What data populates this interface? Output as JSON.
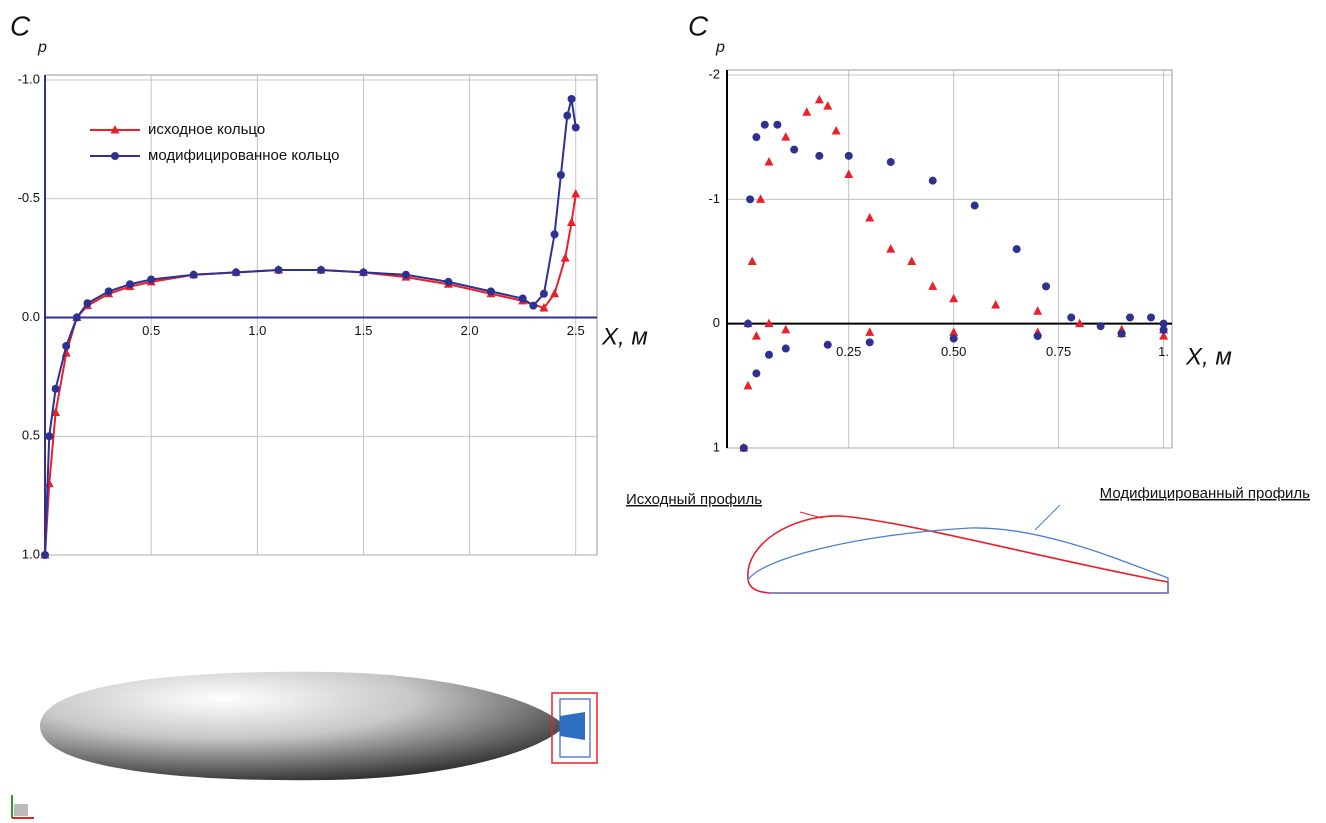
{
  "chart_data": [
    {
      "type": "line",
      "y_label": "C",
      "y_label_sub": "p",
      "x_label": "X, м",
      "xlim": [
        0,
        2.6
      ],
      "ylim": [
        1,
        -1
      ],
      "xticks": [
        0.5,
        {
          "value": 1,
          "label": "1.0"
        },
        1.5,
        {
          "value": 2,
          "label": "2.0"
        },
        2.5
      ],
      "yticks": [
        {
          "value": -1,
          "label": "-1.0"
        },
        -0.5,
        {
          "value": 0,
          "label": "0.0"
        },
        0.5,
        {
          "value": 1,
          "label": "1.0"
        }
      ],
      "grid": true,
      "legend": "upper left",
      "series": [
        {
          "name": "исходное кольцо",
          "color": "#e8202a",
          "marker": "triangle",
          "x": [
            0,
            0.02,
            0.05,
            0.1,
            0.15,
            0.2,
            0.3,
            0.4,
            0.5,
            0.7,
            0.9,
            1.1,
            1.3,
            1.5,
            1.7,
            1.9,
            2.1,
            2.25,
            2.35,
            2.4,
            2.45,
            2.48,
            2.5
          ],
          "values": [
            1,
            0.7,
            0.4,
            0.15,
            0,
            -0.05,
            -0.1,
            -0.13,
            -0.15,
            -0.18,
            -0.19,
            -0.2,
            -0.2,
            -0.19,
            -0.17,
            -0.14,
            -0.1,
            -0.07,
            -0.04,
            -0.1,
            -0.25,
            -0.4,
            -0.52
          ]
        },
        {
          "name": "модифицированное кольцо",
          "color": "#2e3192",
          "marker": "circle",
          "x": [
            0,
            0.02,
            0.05,
            0.1,
            0.15,
            0.2,
            0.3,
            0.4,
            0.5,
            0.7,
            0.9,
            1.1,
            1.3,
            1.5,
            1.7,
            1.9,
            2.1,
            2.25,
            2.3,
            2.35,
            2.4,
            2.43,
            2.46,
            2.48,
            2.5
          ],
          "values": [
            1,
            0.5,
            0.3,
            0.12,
            0,
            -0.06,
            -0.11,
            -0.14,
            -0.16,
            -0.18,
            -0.19,
            -0.2,
            -0.2,
            -0.19,
            -0.18,
            -0.15,
            -0.11,
            -0.08,
            -0.05,
            -0.1,
            -0.35,
            -0.6,
            -0.85,
            -0.92,
            -0.8
          ]
        }
      ]
    },
    {
      "type": "scatter",
      "y_label": "C",
      "y_label_sub": "p",
      "x_label": "X, м",
      "xlim": [
        -0.04,
        1.02
      ],
      "ylim": [
        1,
        -2
      ],
      "xticks": [
        0.25,
        {
          "value": 0.5,
          "label": "0.50"
        },
        0.75,
        {
          "value": 1,
          "label": "1."
        }
      ],
      "yticks": [
        -2,
        -1,
        0,
        1
      ],
      "grid": true,
      "series": [
        {
          "color": "#e8202a",
          "marker": "triangle",
          "x": [
            0,
            0.01,
            0.02,
            0.04,
            0.06,
            0.1,
            0.15,
            0.18,
            0.2,
            0.22,
            0.25,
            0.3,
            0.35,
            0.4,
            0.45,
            0.5,
            0.6,
            0.7,
            0.8,
            0.9,
            1.0
          ],
          "values": [
            1,
            0,
            -0.5,
            -1.0,
            -1.3,
            -1.5,
            -1.7,
            -1.8,
            -1.75,
            -1.55,
            -1.2,
            -0.85,
            -0.6,
            -0.5,
            -0.3,
            -0.2,
            -0.15,
            -0.1,
            0,
            0.05,
            0.1
          ]
        },
        {
          "color": "#e8202a",
          "marker": "triangle",
          "x": [
            0.01,
            0.03,
            0.06,
            0.1,
            0.3,
            0.5,
            0.7,
            0.9,
            1.0
          ],
          "values": [
            0.5,
            0.1,
            0,
            0.05,
            0.07,
            0.07,
            0.07,
            0.08,
            0.05
          ]
        },
        {
          "color": "#2e3192",
          "marker": "circle",
          "x": [
            0,
            0.01,
            0.015,
            0.03,
            0.05,
            0.08,
            0.12,
            0.18,
            0.25,
            0.35,
            0.45,
            0.55,
            0.65,
            0.72,
            0.78,
            0.85,
            0.92,
            0.97,
            1.0
          ],
          "values": [
            1,
            0,
            -1.0,
            -1.5,
            -1.6,
            -1.6,
            -1.4,
            -1.35,
            -1.35,
            -1.3,
            -1.15,
            -0.95,
            -0.6,
            -0.3,
            -0.05,
            0.02,
            -0.05,
            -0.05,
            0
          ]
        },
        {
          "color": "#2e3192",
          "marker": "circle",
          "x": [
            0.03,
            0.06,
            0.1,
            0.2,
            0.3,
            0.5,
            0.7,
            0.9,
            1.0
          ],
          "values": [
            0.4,
            0.25,
            0.2,
            0.17,
            0.15,
            0.12,
            0.1,
            0.08,
            0.05
          ]
        }
      ]
    }
  ],
  "profiles": [
    {
      "label": "Исходный профиль",
      "color": "#e8202a"
    },
    {
      "label": "Модифицированный профиль",
      "color": "#2e3192"
    }
  ]
}
